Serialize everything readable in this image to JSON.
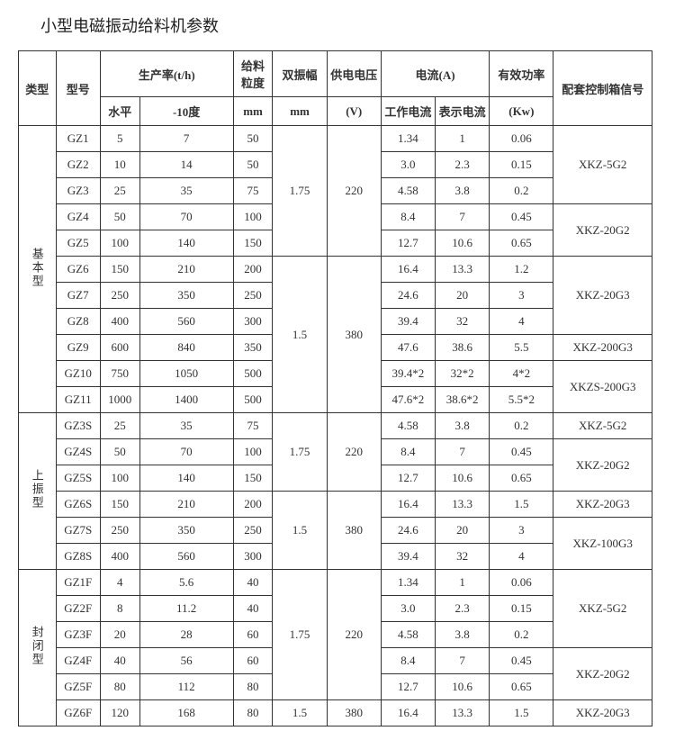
{
  "title": "小型电磁振动给料机参数",
  "headers": {
    "type": "类型",
    "model": "型号",
    "prod": "生产率(t/h)",
    "prod_h": "水平",
    "prod_10": "-10度",
    "grain": "给料粒度",
    "grain_unit": "mm",
    "amp": "双振幅",
    "amp_unit": "mm",
    "volt": "供电电压",
    "volt_unit": "(V)",
    "current": "电流(A)",
    "cur_work": "工作电流",
    "cur_disp": "表示电流",
    "power": "有效功率",
    "power_unit": "(Kw)",
    "ctrl": "配套控制箱信号"
  },
  "groups": [
    {
      "type": "基本型",
      "rows": [
        {
          "model": "GZ1",
          "h": "5",
          "d": "7",
          "g": "50",
          "cw": "1.34",
          "cd": "1",
          "p": "0.06"
        },
        {
          "model": "GZ2",
          "h": "10",
          "d": "14",
          "g": "50",
          "cw": "3.0",
          "cd": "2.3",
          "p": "0.15"
        },
        {
          "model": "GZ3",
          "h": "25",
          "d": "35",
          "g": "75",
          "cw": "4.58",
          "cd": "3.8",
          "p": "0.2"
        },
        {
          "model": "GZ4",
          "h": "50",
          "d": "70",
          "g": "100",
          "cw": "8.4",
          "cd": "7",
          "p": "0.45"
        },
        {
          "model": "GZ5",
          "h": "100",
          "d": "140",
          "g": "150",
          "cw": "12.7",
          "cd": "10.6",
          "p": "0.65"
        },
        {
          "model": "GZ6",
          "h": "150",
          "d": "210",
          "g": "200",
          "cw": "16.4",
          "cd": "13.3",
          "p": "1.2"
        },
        {
          "model": "GZ7",
          "h": "250",
          "d": "350",
          "g": "250",
          "cw": "24.6",
          "cd": "20",
          "p": "3"
        },
        {
          "model": "GZ8",
          "h": "400",
          "d": "560",
          "g": "300",
          "cw": "39.4",
          "cd": "32",
          "p": "4"
        },
        {
          "model": "GZ9",
          "h": "600",
          "d": "840",
          "g": "350",
          "cw": "47.6",
          "cd": "38.6",
          "p": "5.5"
        },
        {
          "model": "GZ10",
          "h": "750",
          "d": "1050",
          "g": "500",
          "cw": "39.4*2",
          "cd": "32*2",
          "p": "4*2"
        },
        {
          "model": "GZ11",
          "h": "1000",
          "d": "1400",
          "g": "500",
          "cw": "47.6*2",
          "cd": "38.6*2",
          "p": "5.5*2"
        }
      ],
      "amp_volt": [
        {
          "amp": "1.75",
          "volt": "220",
          "span": 5
        },
        {
          "amp": "1.5",
          "volt": "380",
          "span": 6
        }
      ],
      "ctrl": [
        {
          "v": "XKZ-5G2",
          "span": 3
        },
        {
          "v": "XKZ-20G2",
          "span": 2
        },
        {
          "v": "XKZ-20G3",
          "span": 3
        },
        {
          "v": "XKZ-200G3",
          "span": 1
        },
        {
          "v": "XKZS-200G3",
          "span": 2
        }
      ]
    },
    {
      "type": "上振型",
      "rows": [
        {
          "model": "GZ3S",
          "h": "25",
          "d": "35",
          "g": "75",
          "cw": "4.58",
          "cd": "3.8",
          "p": "0.2"
        },
        {
          "model": "GZ4S",
          "h": "50",
          "d": "70",
          "g": "100",
          "cw": "8.4",
          "cd": "7",
          "p": "0.45"
        },
        {
          "model": "GZ5S",
          "h": "100",
          "d": "140",
          "g": "150",
          "cw": "12.7",
          "cd": "10.6",
          "p": "0.65"
        },
        {
          "model": "GZ6S",
          "h": "150",
          "d": "210",
          "g": "200",
          "cw": "16.4",
          "cd": "13.3",
          "p": "1.5"
        },
        {
          "model": "GZ7S",
          "h": "250",
          "d": "350",
          "g": "250",
          "cw": "24.6",
          "cd": "20",
          "p": "3"
        },
        {
          "model": "GZ8S",
          "h": "400",
          "d": "560",
          "g": "300",
          "cw": "39.4",
          "cd": "32",
          "p": "4"
        }
      ],
      "amp_volt": [
        {
          "amp": "1.75",
          "volt": "220",
          "span": 3
        },
        {
          "amp": "1.5",
          "volt": "380",
          "span": 3
        }
      ],
      "ctrl": [
        {
          "v": "XKZ-5G2",
          "span": 1
        },
        {
          "v": "XKZ-20G2",
          "span": 2
        },
        {
          "v": "XKZ-20G3",
          "span": 1
        },
        {
          "v": "XKZ-100G3",
          "span": 2
        }
      ]
    },
    {
      "type": "封闭型",
      "rows": [
        {
          "model": "GZ1F",
          "h": "4",
          "d": "5.6",
          "g": "40",
          "cw": "1.34",
          "cd": "1",
          "p": "0.06"
        },
        {
          "model": "GZ2F",
          "h": "8",
          "d": "11.2",
          "g": "40",
          "cw": "3.0",
          "cd": "2.3",
          "p": "0.15"
        },
        {
          "model": "GZ3F",
          "h": "20",
          "d": "28",
          "g": "60",
          "cw": "4.58",
          "cd": "3.8",
          "p": "0.2"
        },
        {
          "model": "GZ4F",
          "h": "40",
          "d": "56",
          "g": "60",
          "cw": "8.4",
          "cd": "7",
          "p": "0.45"
        },
        {
          "model": "GZ5F",
          "h": "80",
          "d": "112",
          "g": "80",
          "cw": "12.7",
          "cd": "10.6",
          "p": "0.65"
        },
        {
          "model": "GZ6F",
          "h": "120",
          "d": "168",
          "g": "80",
          "cw": "16.4",
          "cd": "13.3",
          "p": "1.5"
        }
      ],
      "amp_volt": [
        {
          "amp": "1.75",
          "volt": "220",
          "span": 5
        },
        {
          "amp": "1.5",
          "volt": "380",
          "span": 1
        }
      ],
      "ctrl": [
        {
          "v": "XKZ-5G2",
          "span": 3
        },
        {
          "v": "XKZ-20G2",
          "span": 2
        },
        {
          "v": "XKZ-20G3",
          "span": 1
        }
      ]
    }
  ]
}
